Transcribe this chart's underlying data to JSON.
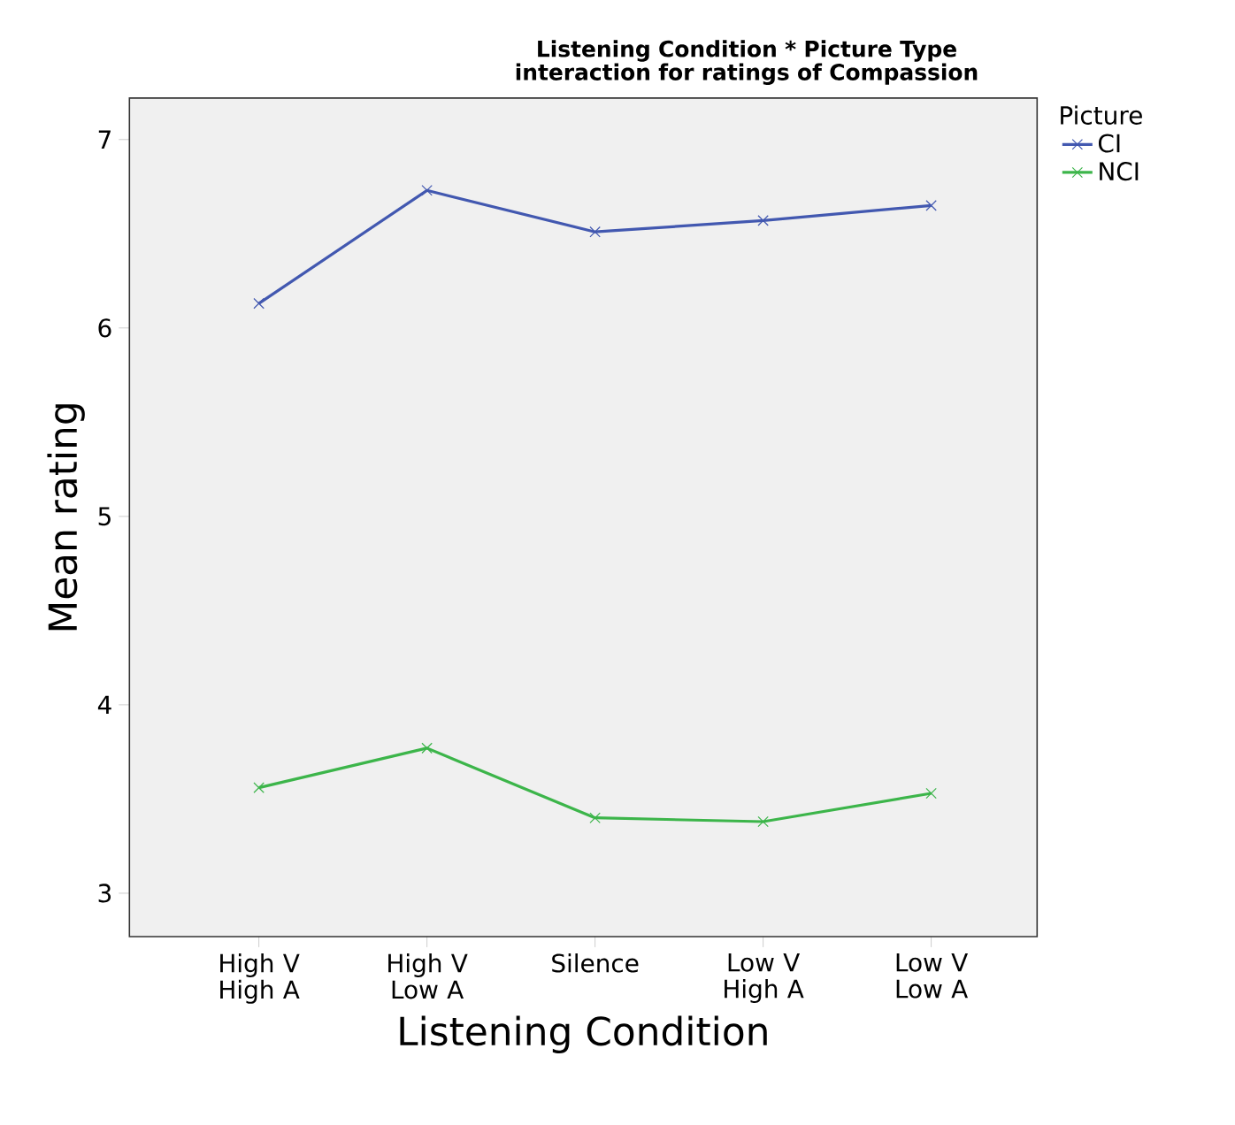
{
  "chart_data": {
    "type": "line",
    "title": "Listening Condition * Picture Type interaction for ratings of Compassion",
    "xlabel": "Listening Condition",
    "ylabel": "Mean rating",
    "legend_title": "Picture",
    "legend": "right",
    "marker": "cross",
    "line_style": "solid",
    "grid": false,
    "categories": [
      "High V High A",
      "High V Low A",
      "Silence",
      "Low V High A",
      "Low V Low A"
    ],
    "ylim": [
      2.77,
      7.22
    ],
    "yticks": [
      3,
      4,
      5,
      6,
      7
    ],
    "series": [
      {
        "name": "CI",
        "color": "#4258b0",
        "values": [
          6.13,
          6.73,
          6.51,
          6.57,
          6.65
        ]
      },
      {
        "name": "NCI",
        "color": "#3cb54a",
        "values": [
          3.56,
          3.77,
          3.4,
          3.38,
          3.53
        ]
      }
    ]
  }
}
